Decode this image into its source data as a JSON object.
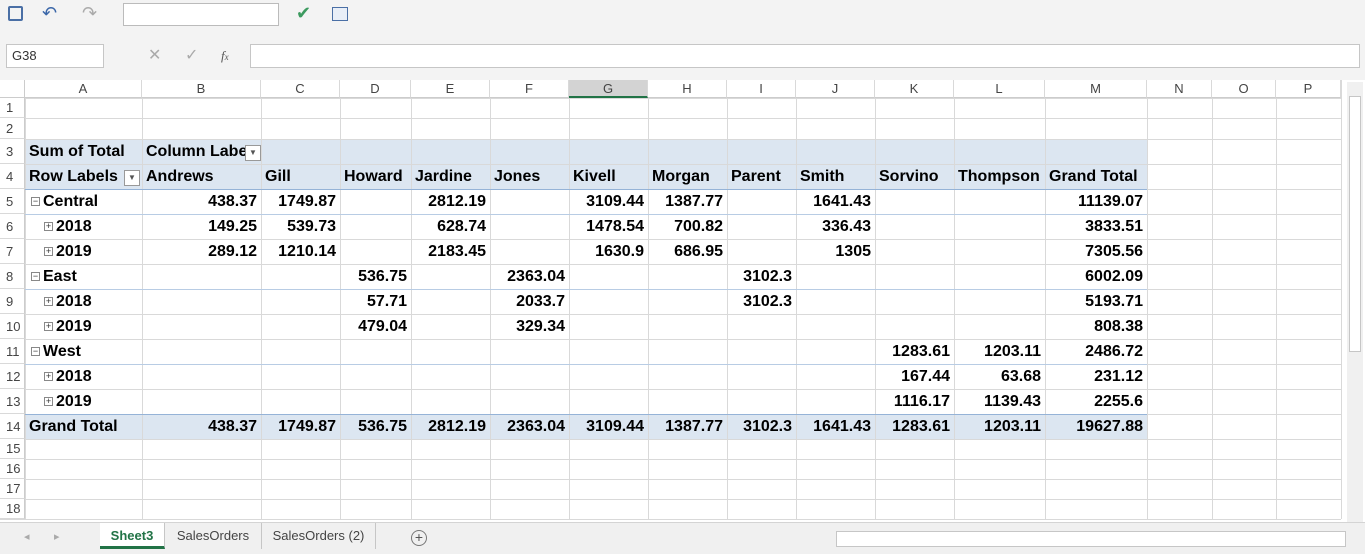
{
  "name_box": "G38",
  "columns": [
    "A",
    "B",
    "C",
    "D",
    "E",
    "F",
    "G",
    "H",
    "I",
    "J",
    "K",
    "L",
    "M",
    "N",
    "O",
    "P"
  ],
  "row_numbers": [
    1,
    2,
    3,
    4,
    5,
    6,
    7,
    8,
    9,
    10,
    11,
    12,
    13,
    14,
    15,
    16,
    17,
    18
  ],
  "pivot": {
    "header": [
      "Sum of Total",
      "Column Labels"
    ],
    "column_headers": [
      "Row Labels",
      "Andrews",
      "Gill",
      "Howard",
      "Jardine",
      "Jones",
      "Kivell",
      "Morgan",
      "Parent",
      "Smith",
      "Sorvino",
      "Thompson",
      "Grand Total"
    ],
    "groups": [
      {
        "label": "Central",
        "values": [
          438.37,
          1749.87,
          null,
          2812.19,
          null,
          3109.44,
          1387.77,
          null,
          1641.43,
          null,
          null,
          11139.07
        ],
        "children": [
          {
            "label": "2018",
            "values": [
              149.25,
              539.73,
              null,
              628.74,
              null,
              1478.54,
              700.82,
              null,
              336.43,
              null,
              null,
              3833.51
            ]
          },
          {
            "label": "2019",
            "values": [
              289.12,
              1210.14,
              null,
              2183.45,
              null,
              1630.9,
              686.95,
              null,
              1305,
              null,
              null,
              7305.56
            ]
          }
        ]
      },
      {
        "label": "East",
        "values": [
          null,
          null,
          536.75,
          null,
          2363.04,
          null,
          null,
          3102.3,
          null,
          null,
          null,
          6002.09
        ],
        "children": [
          {
            "label": "2018",
            "values": [
              null,
              null,
              57.71,
              null,
              2033.7,
              null,
              null,
              3102.3,
              null,
              null,
              null,
              5193.71
            ]
          },
          {
            "label": "2019",
            "values": [
              null,
              null,
              479.04,
              null,
              329.34,
              null,
              null,
              null,
              null,
              null,
              null,
              808.38
            ]
          }
        ]
      },
      {
        "label": "West",
        "values": [
          null,
          null,
          null,
          null,
          null,
          null,
          null,
          null,
          null,
          1283.61,
          1203.11,
          2486.72
        ],
        "children": [
          {
            "label": "2018",
            "values": [
              null,
              null,
              null,
              null,
              null,
              null,
              null,
              null,
              null,
              167.44,
              63.68,
              231.12
            ]
          },
          {
            "label": "2019",
            "values": [
              null,
              null,
              null,
              null,
              null,
              null,
              null,
              null,
              null,
              1116.17,
              1139.43,
              2255.6
            ]
          }
        ]
      }
    ],
    "grand_total": {
      "label": "Grand Total",
      "values": [
        438.37,
        1749.87,
        536.75,
        2812.19,
        2363.04,
        3109.44,
        1387.77,
        3102.3,
        1641.43,
        1283.61,
        1203.11,
        19627.88
      ]
    }
  },
  "sheets": [
    "Sheet3",
    "SalesOrders",
    "SalesOrders (2)"
  ]
}
